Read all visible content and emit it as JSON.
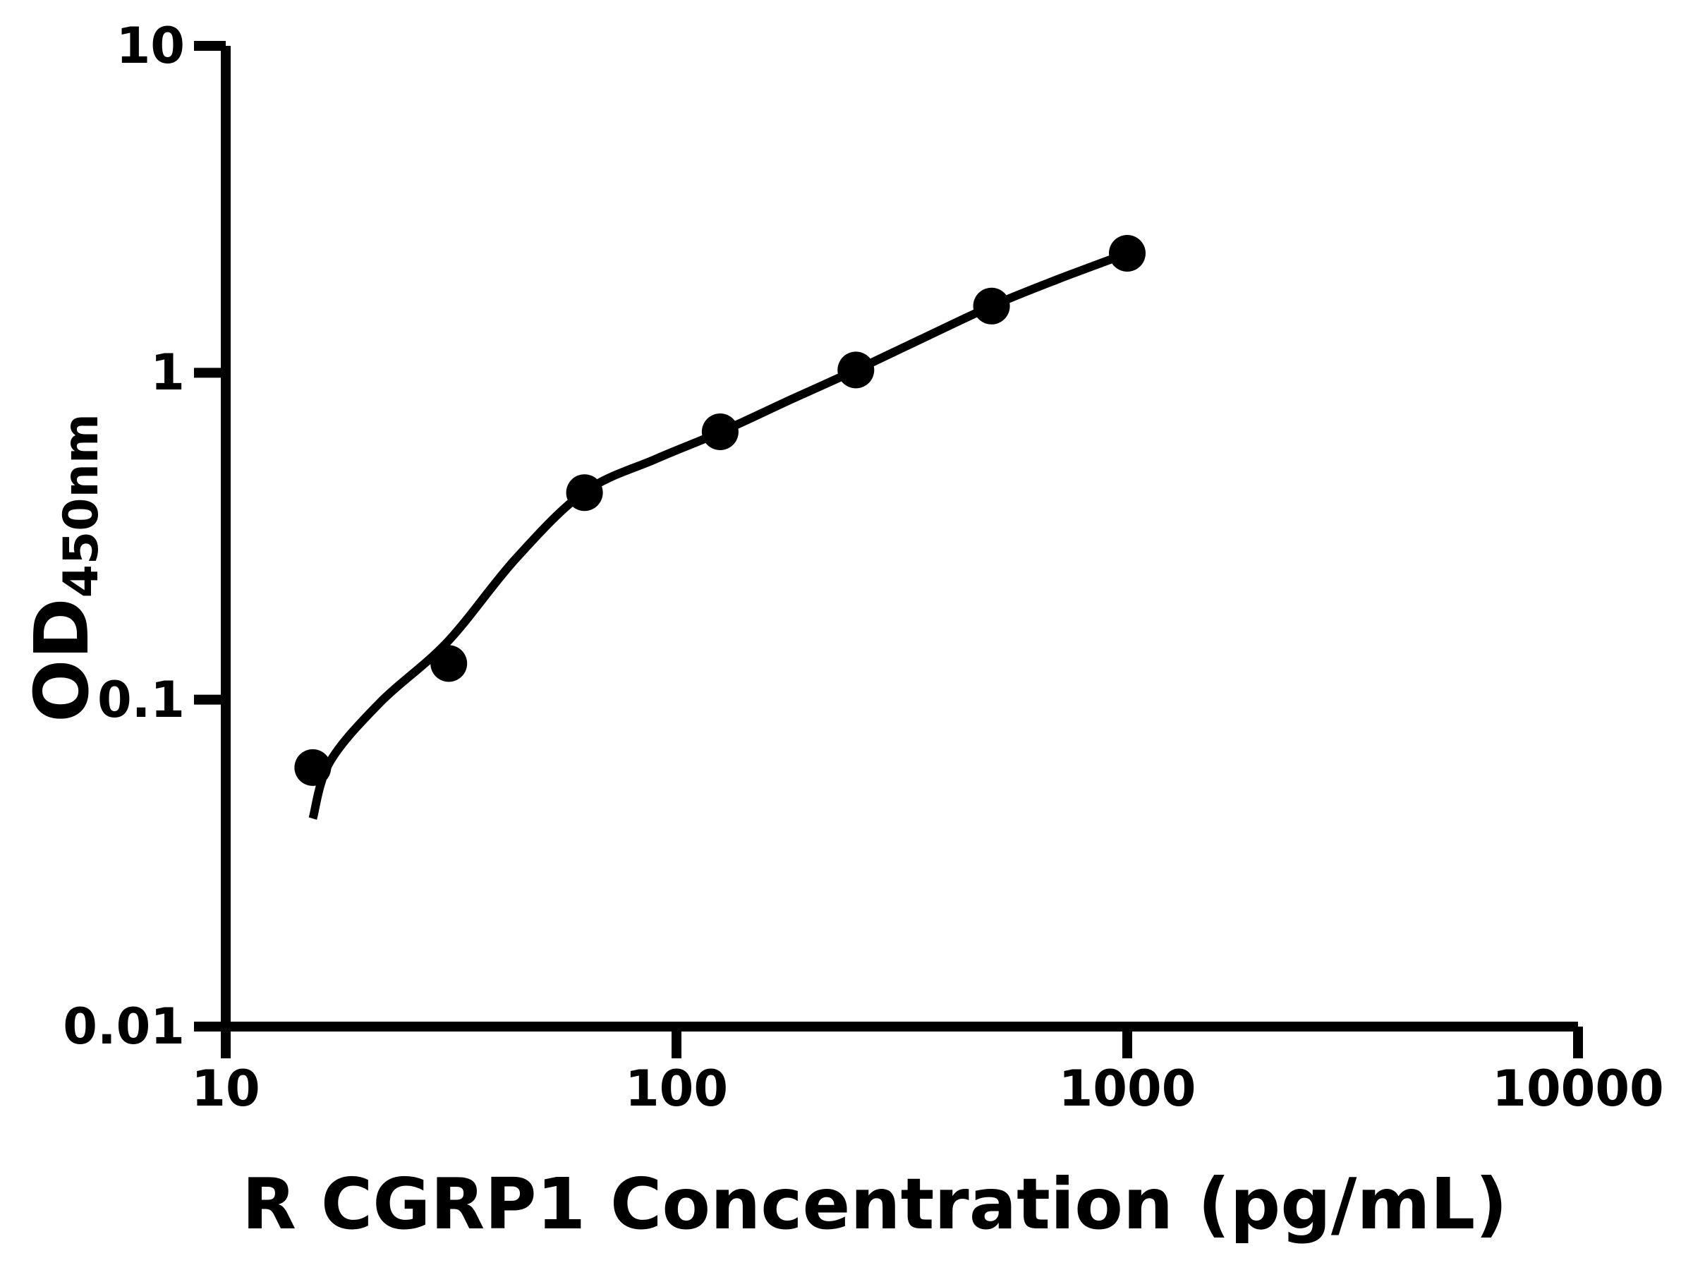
{
  "figure": {
    "background_color": "#ffffff",
    "ink_color": "#000000"
  },
  "chart_data": {
    "type": "scatter",
    "title": "",
    "xlabel": "R CGRP1 Concentration (pg/mL)",
    "ylabel": "OD450nm",
    "ylabel_base": "OD",
    "ylabel_subscript": "450nm",
    "x_scale": "log",
    "y_scale": "log",
    "xlim": [
      10,
      10000
    ],
    "ylim": [
      0.01,
      10
    ],
    "grid": false,
    "legend": null,
    "x_ticks": [
      {
        "value": 10,
        "label": "10"
      },
      {
        "value": 100,
        "label": "100"
      },
      {
        "value": 1000,
        "label": "1000"
      },
      {
        "value": 10000,
        "label": "10000"
      }
    ],
    "y_ticks": [
      {
        "value": 10,
        "label": "10"
      },
      {
        "value": 1,
        "label": "1"
      },
      {
        "value": 0.1,
        "label": "0.1"
      },
      {
        "value": 0.01,
        "label": "0.01"
      }
    ],
    "series": [
      {
        "name": "R CGRP1 standard points",
        "marker": "circle",
        "color": "#000000",
        "points": [
          {
            "x": 15.6,
            "y": 0.062
          },
          {
            "x": 31.25,
            "y": 0.129
          },
          {
            "x": 62.5,
            "y": 0.43
          },
          {
            "x": 125,
            "y": 0.66
          },
          {
            "x": 250,
            "y": 1.02
          },
          {
            "x": 500,
            "y": 1.6
          },
          {
            "x": 1000,
            "y": 2.32
          }
        ]
      }
    ],
    "fit_curve": {
      "name": "fitted standard curve",
      "color": "#000000",
      "anchors": [
        [
          15.6,
          0.0433
        ],
        [
          17,
          0.0643
        ],
        [
          22,
          0.098
        ],
        [
          31,
          0.15
        ],
        [
          44,
          0.27
        ],
        [
          62.5,
          0.432
        ],
        [
          90,
          0.545
        ],
        [
          125,
          0.658
        ],
        [
          180,
          0.83
        ],
        [
          250,
          1.019
        ],
        [
          350,
          1.27
        ],
        [
          500,
          1.6
        ],
        [
          700,
          1.93
        ],
        [
          1000,
          2.32
        ]
      ]
    }
  }
}
